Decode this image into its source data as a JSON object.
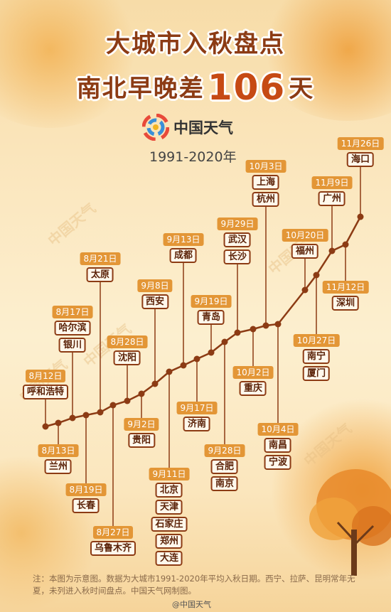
{
  "title_line1": "大城市入秋盘点",
  "title_line2_prefix": "南北早晚差",
  "title_line2_number": "106",
  "title_line2_suffix": "天",
  "brand": "中国天气",
  "years": "1991-2020年",
  "watermark": "中国天气",
  "footnote": "注：本图为示意图。数据为大城市1991-2020年平均入秋日期。西宁、拉萨、昆明常年无夏，未列进入秋时间盘点。中国天气网制图。",
  "weibo_tag": "@中国天气",
  "colors": {
    "accent": "#8c3b14",
    "date_badge": "#e39636",
    "number": "#c64a14"
  },
  "chart_data": {
    "type": "line",
    "title": "大城市入秋盘点",
    "xlabel": "",
    "ylabel": "",
    "points": [
      {
        "date": "8月12日",
        "cities": [
          "呼和浩特"
        ]
      },
      {
        "date": "8月13日",
        "cities": [
          "兰州"
        ]
      },
      {
        "date": "8月17日",
        "cities": [
          "哈尔滨",
          "银川"
        ]
      },
      {
        "date": "8月19日",
        "cities": [
          "长春"
        ]
      },
      {
        "date": "8月21日",
        "cities": [
          "太原"
        ]
      },
      {
        "date": "8月27日",
        "cities": [
          "乌鲁木齐"
        ]
      },
      {
        "date": "8月28日",
        "cities": [
          "沈阳"
        ]
      },
      {
        "date": "9月2日",
        "cities": [
          "贵阳"
        ]
      },
      {
        "date": "9月8日",
        "cities": [
          "西安"
        ]
      },
      {
        "date": "9月11日",
        "cities": [
          "北京",
          "天津",
          "石家庄",
          "郑州",
          "大连"
        ]
      },
      {
        "date": "9月13日",
        "cities": [
          "成都"
        ]
      },
      {
        "date": "9月17日",
        "cities": [
          "济南"
        ]
      },
      {
        "date": "9月19日",
        "cities": [
          "青岛"
        ]
      },
      {
        "date": "9月28日",
        "cities": [
          "合肥",
          "南京"
        ]
      },
      {
        "date": "9月29日",
        "cities": [
          "武汉",
          "长沙"
        ]
      },
      {
        "date": "10月2日",
        "cities": [
          "重庆"
        ]
      },
      {
        "date": "10月3日",
        "cities": [
          "上海",
          "杭州"
        ]
      },
      {
        "date": "10月4日",
        "cities": [
          "南昌",
          "宁波"
        ]
      },
      {
        "date": "10月20日",
        "cities": [
          "福州"
        ]
      },
      {
        "date": "10月27日",
        "cities": [
          "南宁",
          "厦门"
        ]
      },
      {
        "date": "11月9日",
        "cities": [
          "广州"
        ]
      },
      {
        "date": "11月12日",
        "cities": [
          "深圳"
        ]
      },
      {
        "date": "11月26日",
        "cities": [
          "海口"
        ]
      }
    ]
  }
}
